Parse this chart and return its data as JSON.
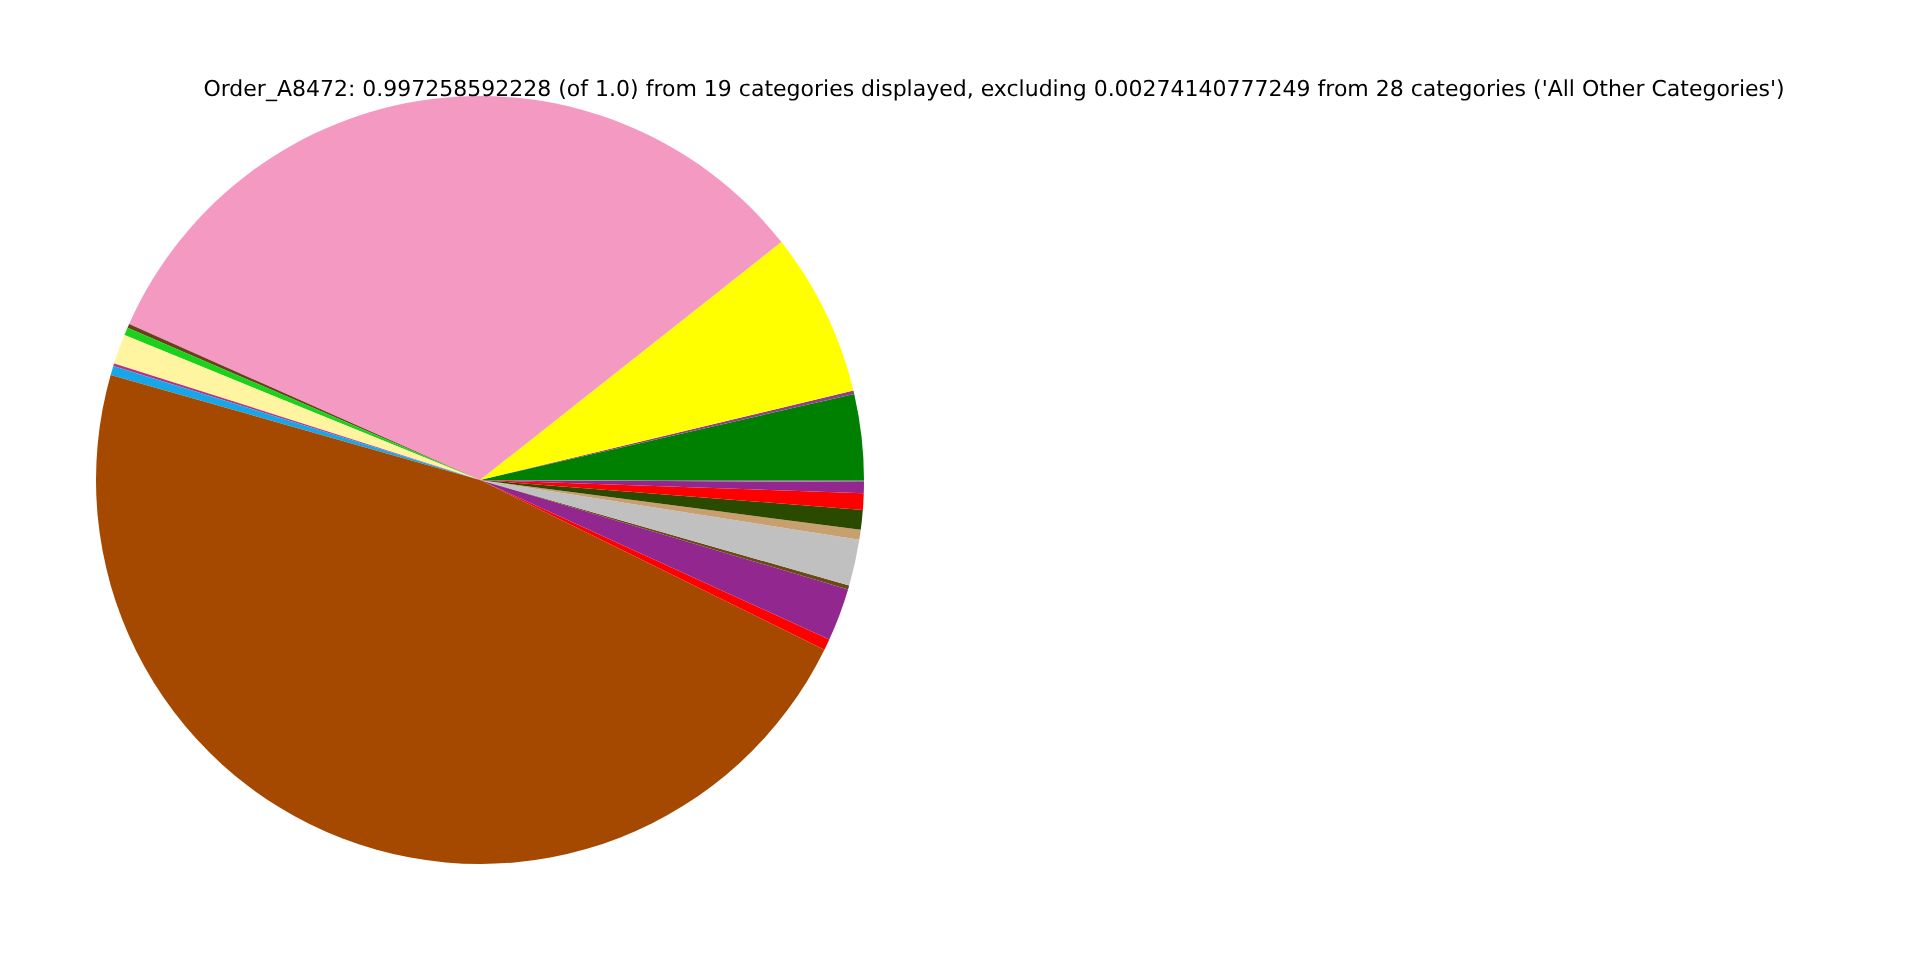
{
  "chart_data": {
    "type": "pie",
    "title": "Order_A8472: 0.997258592228 (of 1.0) from 19 categories displayed, excluding 0.00274140777249 from 28 categories ('All Other Categories')",
    "categories": [
      null,
      null,
      null,
      null,
      null,
      null,
      null,
      null,
      null,
      null,
      null,
      null,
      null,
      null,
      null,
      null,
      null,
      null,
      null
    ],
    "values": [
      3.6,
      0.14,
      6.9,
      32.7,
      0.17,
      0.33,
      1.25,
      0.11,
      0.39,
      47.12,
      0.47,
      2.22,
      0.17,
      1.94,
      0.42,
      0.83,
      0.69,
      0.47,
      0.08
    ],
    "colors": [
      "#008000",
      "#8f3f8f",
      "#ffff00",
      "#f49ac2",
      "#6b3e1e",
      "#19d219",
      "#fff5a0",
      "#c03080",
      "#17a7e8",
      "#a54800",
      "#ff0000",
      "#92278f",
      "#6b4a1a",
      "#c0c0c0",
      "#c8a070",
      "#2a4a00",
      "#ff0000",
      "#92278f",
      "#808080"
    ]
  }
}
